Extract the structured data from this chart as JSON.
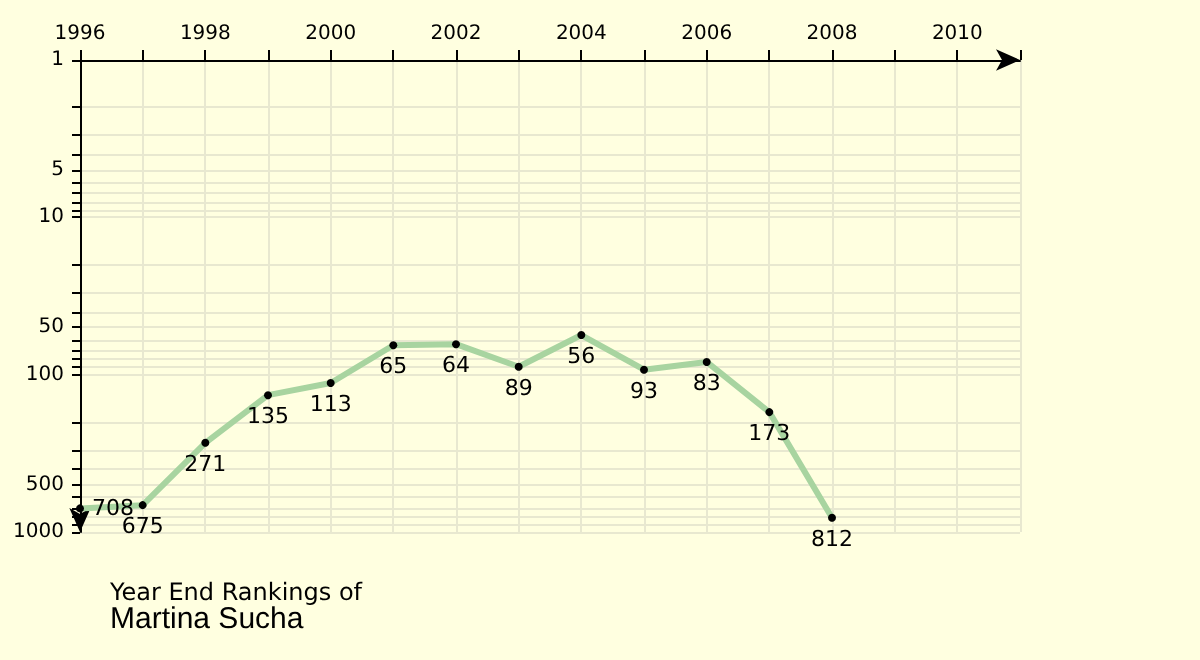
{
  "chart_data": {
    "type": "line",
    "title": "Year End Rankings of",
    "subtitle": "Martina Sucha",
    "x": [
      1996,
      1997,
      1998,
      1999,
      2000,
      2001,
      2002,
      2003,
      2004,
      2005,
      2006,
      2007,
      2008
    ],
    "series": [
      {
        "color": "#a8d4a0",
        "values": [
          708,
          675,
          271,
          135,
          113,
          65,
          64,
          89,
          56,
          93,
          83,
          173,
          812
        ]
      }
    ],
    "data_labels": true,
    "marker": "circle",
    "line_style": "solid",
    "grid": true,
    "log": "y",
    "xlim": [
      1996,
      2011
    ],
    "xticks": [
      1996,
      {
        "value": 1997,
        "label": null
      },
      1998,
      {
        "value": 1999,
        "label": null
      },
      2000,
      {
        "value": 2001,
        "label": null
      },
      2002,
      {
        "value": 2003,
        "label": null
      },
      2004,
      {
        "value": 2005,
        "label": null
      },
      2006,
      {
        "value": 2007,
        "label": null
      },
      2008,
      {
        "value": 2009,
        "label": null
      },
      2010,
      {
        "value": 2011,
        "label": null
      }
    ],
    "ylim": [
      1000,
      1
    ],
    "yticks": [
      1,
      {
        "value": 2,
        "label": null
      },
      {
        "value": 3,
        "label": null
      },
      {
        "value": 4,
        "label": null
      },
      5,
      {
        "value": 6,
        "label": null
      },
      {
        "value": 7,
        "label": null
      },
      {
        "value": 8,
        "label": null
      },
      {
        "value": 9,
        "label": null
      },
      10,
      {
        "value": 20,
        "label": null
      },
      {
        "value": 30,
        "label": null
      },
      {
        "value": 40,
        "label": null
      },
      50,
      {
        "value": 60,
        "label": null
      },
      {
        "value": 70,
        "label": null
      },
      {
        "value": 80,
        "label": null
      },
      {
        "value": 90,
        "label": null
      },
      100,
      {
        "value": 200,
        "label": null
      },
      {
        "value": 300,
        "label": null
      },
      {
        "value": 400,
        "label": null
      },
      500,
      {
        "value": 600,
        "label": null
      },
      {
        "value": 700,
        "label": null
      },
      {
        "value": 800,
        "label": null
      },
      {
        "value": 900,
        "label": null
      },
      1000
    ]
  }
}
